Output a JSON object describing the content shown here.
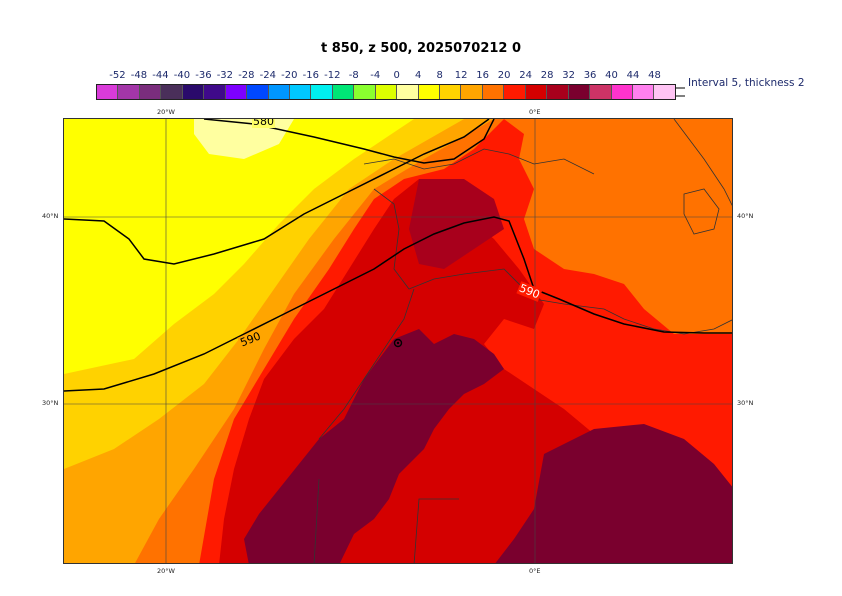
{
  "title": "t 850, z 500, 2025070212 0",
  "legend": {
    "labels": [
      "-52",
      "-48",
      "-44",
      "-40",
      "-36",
      "-32",
      "-28",
      "-24",
      "-20",
      "-16",
      "-12",
      "-8",
      "-4",
      "0",
      "4",
      "8",
      "12",
      "16",
      "20",
      "24",
      "28",
      "32",
      "36",
      "40",
      "44",
      "48"
    ],
    "colors": [
      "#d93bd9",
      "#a336a8",
      "#7a2d7d",
      "#4a2f5a",
      "#2a0a6b",
      "#3f0a8a",
      "#7d00ff",
      "#0048ff",
      "#0096ff",
      "#00c8ff",
      "#00f0f0",
      "#00e676",
      "#8aff2f",
      "#ddff00",
      "#ffffa0",
      "#ffff00",
      "#ffd200",
      "#ffa500",
      "#ff7200",
      "#ff1a00",
      "#d40000",
      "#a8001c",
      "#7a002e",
      "#cc3366",
      "#ff33cc",
      "#ff80ee",
      "#ffc4f4"
    ],
    "note": "Interval 5, thickness 2"
  },
  "map": {
    "contour_labels": {
      "c580": "580",
      "c590_west": "590",
      "c590_east": "590"
    },
    "lon_labels": {
      "w20_top": "20°W",
      "e0_top": "0°E",
      "w20_bottom": "20°W",
      "e0_bottom": "0°E"
    },
    "lat_labels": {
      "n40_left": "40°N",
      "n40_right": "40°N",
      "n30_left": "30°N",
      "n30_right": "30°N"
    }
  }
}
